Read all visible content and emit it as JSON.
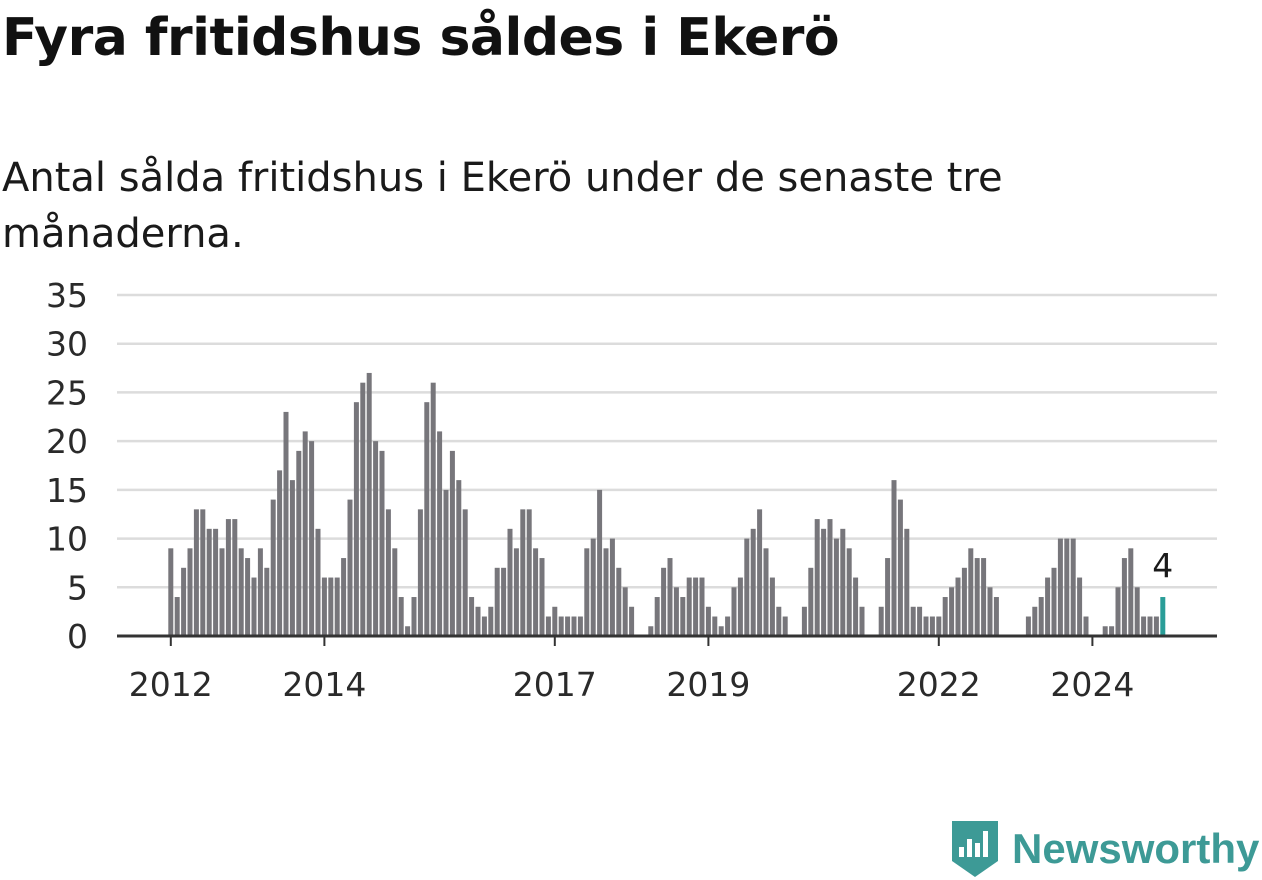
{
  "title": "Fyra fritidshus såldes i Ekerö",
  "subtitle": "Antal sålda fritidshus i Ekerö under de senaste tre månaderna.",
  "brand": {
    "name": "Newsworthy",
    "color": "#3d9a96",
    "icon": "bar-chart-logo-icon"
  },
  "chart_data": {
    "type": "bar",
    "y_ticks": [
      0,
      5,
      10,
      15,
      20,
      25,
      30,
      35
    ],
    "ylim": [
      0,
      35
    ],
    "x_ticks": [
      {
        "label": "2012",
        "index": 0
      },
      {
        "label": "2014",
        "index": 24
      },
      {
        "label": "2017",
        "index": 60
      },
      {
        "label": "2019",
        "index": 84
      },
      {
        "label": "2022",
        "index": 120
      },
      {
        "label": "2024",
        "index": 144
      }
    ],
    "start": "2012-01",
    "values": [
      9,
      4,
      7,
      9,
      13,
      13,
      11,
      11,
      9,
      12,
      12,
      9,
      8,
      6,
      9,
      7,
      14,
      17,
      23,
      16,
      19,
      21,
      20,
      11,
      6,
      6,
      6,
      8,
      14,
      24,
      26,
      27,
      20,
      19,
      13,
      9,
      4,
      1,
      4,
      13,
      24,
      26,
      21,
      15,
      19,
      16,
      13,
      4,
      3,
      2,
      3,
      7,
      7,
      11,
      9,
      13,
      13,
      9,
      8,
      2,
      3,
      2,
      2,
      2,
      2,
      9,
      10,
      15,
      9,
      10,
      7,
      5,
      3,
      0,
      0,
      1,
      4,
      7,
      8,
      5,
      4,
      6,
      6,
      6,
      3,
      2,
      1,
      2,
      5,
      6,
      10,
      11,
      13,
      9,
      6,
      3,
      2,
      0,
      0,
      3,
      7,
      12,
      11,
      12,
      10,
      11,
      9,
      6,
      3,
      0,
      0,
      3,
      8,
      16,
      14,
      11,
      3,
      3,
      2,
      2,
      2,
      4,
      5,
      6,
      7,
      9,
      8,
      8,
      5,
      4,
      0,
      0,
      0,
      0,
      2,
      3,
      4,
      6,
      7,
      10,
      10,
      10,
      6,
      2,
      0,
      0,
      1,
      1,
      5,
      8,
      9,
      5,
      2,
      2,
      2,
      4
    ],
    "colors": {
      "bar": "#77767b",
      "highlight": "#2a9d98",
      "grid": "#dcdcdc",
      "axis": "#333333"
    },
    "last_value_label": "4"
  }
}
